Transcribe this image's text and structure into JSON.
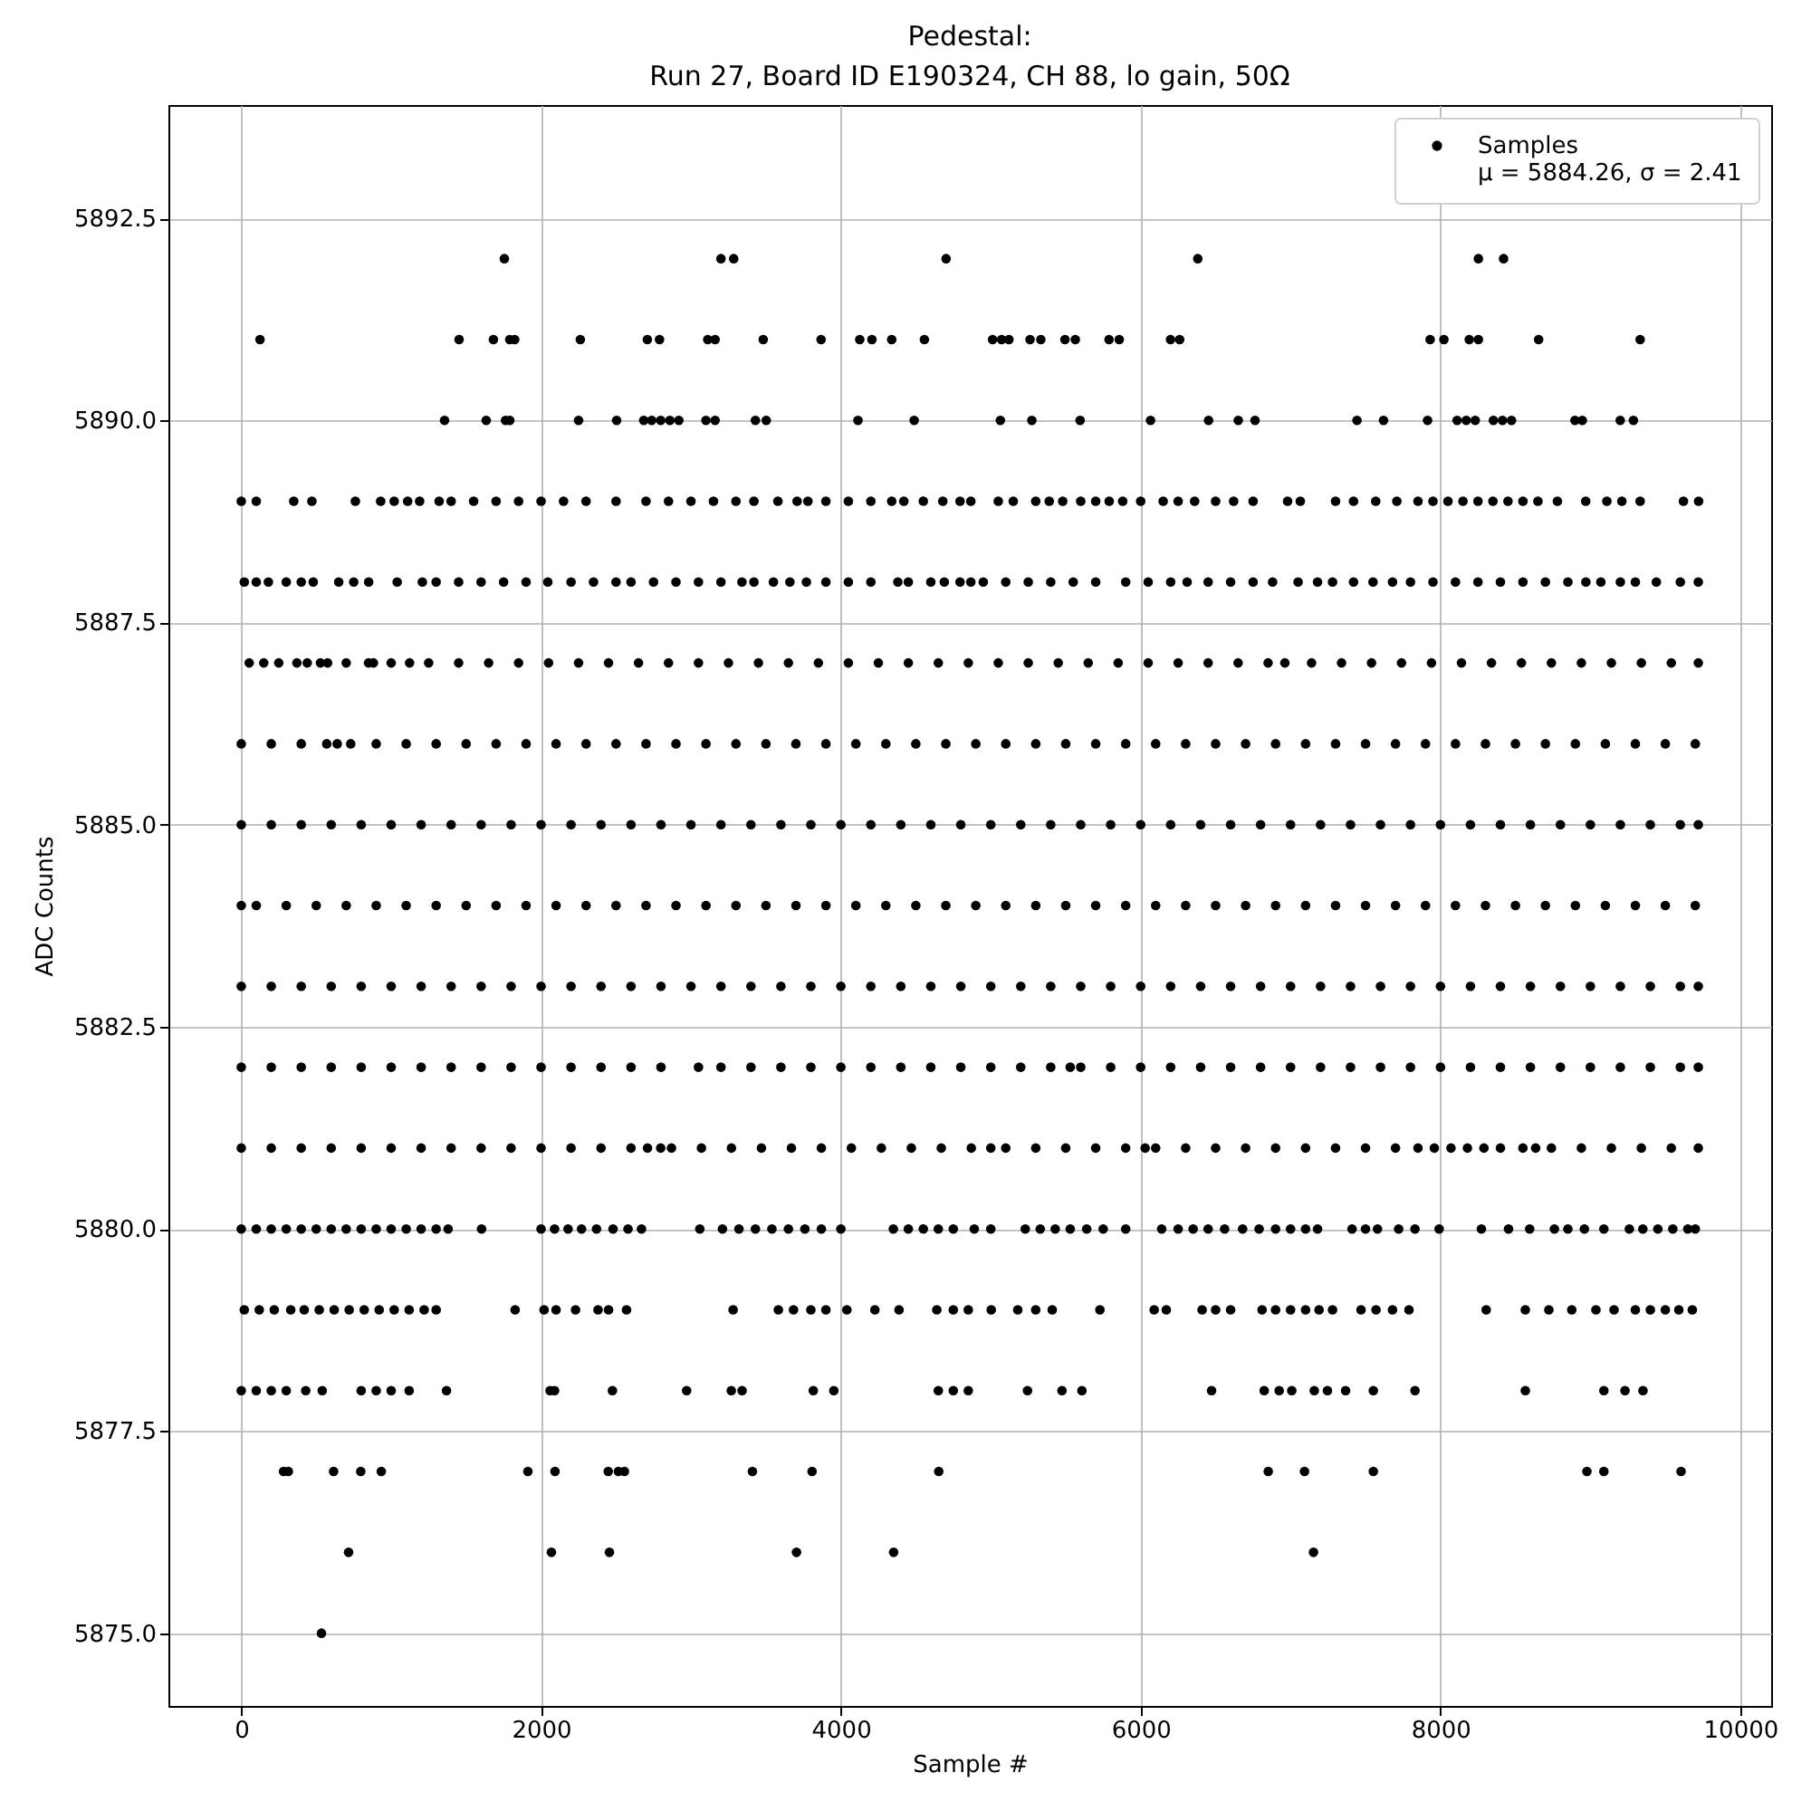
{
  "chart_data": {
    "type": "scatter",
    "title": "Pedestal:\nRun 27, Board ID E190324, CH 88, lo gain, 50Ω",
    "xlabel": "Sample #",
    "ylabel": "ADC Counts",
    "xlim": [
      -486,
      10206
    ],
    "ylim": [
      5874.1,
      5893.9
    ],
    "xticks": [
      0,
      2000,
      4000,
      6000,
      8000,
      10000
    ],
    "yticks": [
      {
        "value": 5875,
        "label": "5875.0"
      },
      5877.5,
      {
        "value": 5880,
        "label": "5880.0"
      },
      5882.5,
      {
        "value": 5885,
        "label": "5885.0"
      },
      5887.5,
      {
        "value": 5890,
        "label": "5890.0"
      },
      5892.5
    ],
    "grid": true,
    "legend": "top right",
    "marker": "circle",
    "x": [
      535,
      716,
      2069,
      2456,
      3704,
      4352,
      7153,
      282,
      314,
      616,
      797,
      934,
      1912,
      2093,
      2448,
      2516,
      2556,
      3410,
      3808,
      4653,
      6851,
      7093,
      7552,
      8977,
      9090,
      9605,
      0,
      100,
      200,
      300,
      430,
      540,
      800,
      900,
      1000,
      1120,
      1369,
      2060,
      2090,
      2476,
      2971,
      3269,
      3341,
      3816,
      3953,
      4650,
      4750,
      4850,
      5245,
      5475,
      5608,
      6473,
      6824,
      6924,
      7008,
      7158,
      7246,
      7367,
      7552,
      7830,
      8566,
      9090,
      9231,
      9351,
      20,
      120,
      220,
      330,
      420,
      520,
      620,
      720,
      820,
      920,
      1020,
      1120,
      1220,
      1300,
      1827,
      2020,
      2100,
      2230,
      2380,
      2450,
      2570,
      3281,
      3583,
      3684,
      3800,
      3900,
      4040,
      4227,
      4388,
      4640,
      4750,
      4850,
      5003,
      5180,
      5300,
      5410,
      5728,
      6090,
      6171,
      6410,
      6500,
      6600,
      6810,
      6900,
      7000,
      7100,
      7190,
      7280,
      7470,
      7570,
      7680,
      7790,
      8305,
      8566,
      8723,
      8876,
      9037,
      9158,
      9300,
      9400,
      9500,
      9590,
      9680,
      0,
      100,
      200,
      300,
      400,
      500,
      600,
      700,
      800,
      900,
      1000,
      1100,
      1200,
      1300,
      1380,
      1603,
      2000,
      2090,
      2180,
      2270,
      2370,
      2480,
      2580,
      2670,
      3059,
      3210,
      3320,
      3430,
      3540,
      3650,
      3760,
      3870,
      4000,
      4350,
      4450,
      4550,
      4650,
      4750,
      4890,
      5000,
      5230,
      5330,
      5430,
      5530,
      5640,
      5750,
      5900,
      6140,
      6250,
      6350,
      6450,
      6560,
      6680,
      6790,
      6900,
      7000,
      7100,
      7180,
      7410,
      7500,
      7580,
      7721,
      7830,
      7991,
      8273,
      8454,
      8595,
      8760,
      8850,
      8960,
      9090,
      9260,
      9350,
      9450,
      9550,
      9650,
      9700,
      0,
      200,
      400,
      600,
      800,
      1000,
      1200,
      1400,
      1600,
      1800,
      2000,
      2200,
      2400,
      2600,
      2710,
      2798,
      2870,
      3070,
      3270,
      3470,
      3670,
      3870,
      4070,
      4270,
      4470,
      4670,
      4870,
      5000,
      5100,
      5300,
      5500,
      5700,
      5900,
      6030,
      6100,
      6300,
      6500,
      6700,
      6900,
      7100,
      7300,
      7500,
      7700,
      7850,
      7959,
      8070,
      8180,
      8290,
      8400,
      8550,
      8635,
      8740,
      8940,
      9140,
      9340,
      9540,
      9720,
      0,
      200,
      400,
      600,
      800,
      1000,
      1200,
      1400,
      1600,
      1800,
      2000,
      2200,
      2400,
      2600,
      2800,
      3050,
      3200,
      3400,
      3600,
      3800,
      4000,
      4200,
      4400,
      4600,
      4800,
      5000,
      5200,
      5400,
      5530,
      5600,
      5800,
      6000,
      6200,
      6400,
      6600,
      6800,
      7000,
      7200,
      7400,
      7600,
      7800,
      8000,
      8200,
      8400,
      8600,
      8800,
      9000,
      9200,
      9400,
      9600,
      9720,
      0,
      200,
      400,
      600,
      800,
      1000,
      1200,
      1400,
      1600,
      1800,
      2000,
      2200,
      2400,
      2600,
      2800,
      3000,
      3200,
      3400,
      3600,
      3800,
      4000,
      4200,
      4400,
      4600,
      4800,
      5000,
      5200,
      5400,
      5600,
      5800,
      6000,
      6200,
      6400,
      6600,
      6800,
      7000,
      7200,
      7400,
      7600,
      7800,
      8000,
      8200,
      8400,
      8600,
      8800,
      9000,
      9200,
      9400,
      9600,
      9720,
      0,
      100,
      300,
      500,
      700,
      900,
      1100,
      1300,
      1500,
      1700,
      1900,
      2100,
      2300,
      2500,
      2700,
      2900,
      3100,
      3300,
      3500,
      3700,
      3900,
      4100,
      4300,
      4500,
      4700,
      4900,
      5100,
      5300,
      5500,
      5700,
      5900,
      6100,
      6300,
      6500,
      6700,
      6900,
      7100,
      7300,
      7500,
      7700,
      7900,
      8100,
      8300,
      8500,
      8700,
      8900,
      9100,
      9300,
      9500,
      9700,
      0,
      200,
      400,
      600,
      800,
      1000,
      1200,
      1400,
      1600,
      1800,
      2000,
      2200,
      2400,
      2600,
      2800,
      3000,
      3200,
      3400,
      3600,
      3800,
      4000,
      4200,
      4400,
      4600,
      4800,
      5000,
      5200,
      5400,
      5600,
      5800,
      6000,
      6200,
      6400,
      6600,
      6800,
      7000,
      7200,
      7400,
      7600,
      7800,
      8000,
      8200,
      8400,
      8600,
      8800,
      9000,
      9200,
      9400,
      9600,
      9720,
      0,
      200,
      400,
      570,
      640,
      730,
      900,
      1100,
      1300,
      1500,
      1700,
      1900,
      2100,
      2300,
      2500,
      2700,
      2900,
      3100,
      3300,
      3500,
      3700,
      3900,
      4100,
      4300,
      4500,
      4700,
      4900,
      5100,
      5300,
      5500,
      5700,
      5900,
      6100,
      6300,
      6500,
      6700,
      6900,
      7100,
      7300,
      7500,
      7700,
      7900,
      8100,
      8300,
      8500,
      8700,
      8900,
      9100,
      9300,
      9500,
      9700,
      53,
      150,
      250,
      371,
      440,
      528,
      576,
      700,
      849,
      882,
      1000,
      1123,
      1250,
      1450,
      1650,
      1850,
      2050,
      2250,
      2450,
      2650,
      2850,
      3050,
      3250,
      3450,
      3650,
      3850,
      4050,
      4250,
      4450,
      4650,
      4850,
      5050,
      5250,
      5450,
      5650,
      5850,
      6050,
      6250,
      6450,
      6650,
      6850,
      6962,
      7140,
      7340,
      7540,
      7740,
      7940,
      8140,
      8340,
      8540,
      8740,
      8940,
      9140,
      9340,
      9540,
      9720,
      20,
      100,
      181,
      300,
      400,
      480,
      650,
      750,
      850,
      1040,
      1208,
      1300,
      1450,
      1600,
      1750,
      1900,
      2045,
      2200,
      2350,
      2500,
      2600,
      2750,
      2900,
      3050,
      3200,
      3340,
      3420,
      3550,
      3660,
      3770,
      3900,
      4050,
      4200,
      4380,
      4450,
      4600,
      4690,
      4795,
      4867,
      4950,
      5100,
      5250,
      5400,
      5550,
      5700,
      5900,
      6050,
      6200,
      6310,
      6450,
      6600,
      6750,
      6880,
      7050,
      7180,
      7280,
      7420,
      7550,
      7680,
      7800,
      7950,
      8100,
      8250,
      8400,
      8550,
      8700,
      8850,
      8970,
      9070,
      9200,
      9300,
      9440,
      9600,
      9720,
      0,
      100,
      350,
      471,
      761,
      930,
      1020,
      1110,
      1190,
      1320,
      1400,
      1550,
      1700,
      1850,
      2000,
      2150,
      2300,
      2500,
      2700,
      2850,
      3000,
      3150,
      3300,
      3420,
      3580,
      3708,
      3780,
      3900,
      4050,
      4200,
      4339,
      4420,
      4550,
      4680,
      4795,
      4867,
      5050,
      5150,
      5300,
      5390,
      5480,
      5600,
      5700,
      5790,
      5880,
      6000,
      6150,
      6250,
      6360,
      6500,
      6620,
      6750,
      6980,
      7065,
      7300,
      7420,
      7568,
      7709,
      7850,
      7950,
      8050,
      8150,
      8250,
      8350,
      8450,
      8550,
      8650,
      8780,
      8969,
      9110,
      9210,
      9332,
      9621,
      9722,
      1356,
      1634,
      1763,
      1791,
      2250,
      2504,
      2685,
      2738,
      2798,
      2859,
      2919,
      3100,
      3161,
      3430,
      3502,
      4114,
      4489,
      5064,
      5274,
      5596,
      6066,
      6453,
      6651,
      6763,
      7443,
      7620,
      7914,
      8111,
      8172,
      8232,
      8353,
      8414,
      8474,
      8897,
      8946,
      9199,
      9287,
      125,
      1453,
      1682,
      1791,
      1824,
      2262,
      2709,
      2790,
      3112,
      3161,
      3482,
      3868,
      4126,
      4207,
      4339,
      4557,
      5012,
      5072,
      5121,
      5262,
      5334,
      5495,
      5564,
      5789,
      5857,
      6199,
      6260,
      7931,
      8023,
      8192,
      8253,
      8655,
      9332,
      1755,
      3200,
      3285,
      4702,
      6381,
      8253,
      8421
    ],
    "series": [
      {
        "name": "Samples\nμ = 5884.26, σ = 2.41",
        "color": "#000000",
        "values": [
          5875,
          5876,
          5876,
          5876,
          5876,
          5876,
          5876,
          5877,
          5877,
          5877,
          5877,
          5877,
          5877,
          5877,
          5877,
          5877,
          5877,
          5877,
          5877,
          5877,
          5877,
          5877,
          5877,
          5877,
          5877,
          5877,
          5878,
          5878,
          5878,
          5878,
          5878,
          5878,
          5878,
          5878,
          5878,
          5878,
          5878,
          5878,
          5878,
          5878,
          5878,
          5878,
          5878,
          5878,
          5878,
          5878,
          5878,
          5878,
          5878,
          5878,
          5878,
          5878,
          5878,
          5878,
          5878,
          5878,
          5878,
          5878,
          5878,
          5878,
          5878,
          5878,
          5878,
          5878,
          5879,
          5879,
          5879,
          5879,
          5879,
          5879,
          5879,
          5879,
          5879,
          5879,
          5879,
          5879,
          5879,
          5879,
          5879,
          5879,
          5879,
          5879,
          5879,
          5879,
          5879,
          5879,
          5879,
          5879,
          5879,
          5879,
          5879,
          5879,
          5879,
          5879,
          5879,
          5879,
          5879,
          5879,
          5879,
          5879,
          5879,
          5879,
          5879,
          5879,
          5879,
          5879,
          5879,
          5879,
          5879,
          5879,
          5879,
          5879,
          5879,
          5879,
          5879,
          5879,
          5879,
          5879,
          5879,
          5879,
          5879,
          5879,
          5879,
          5879,
          5879,
          5879,
          5879,
          5880,
          5880,
          5880,
          5880,
          5880,
          5880,
          5880,
          5880,
          5880,
          5880,
          5880,
          5880,
          5880,
          5880,
          5880,
          5880,
          5880,
          5880,
          5880,
          5880,
          5880,
          5880,
          5880,
          5880,
          5880,
          5880,
          5880,
          5880,
          5880,
          5880,
          5880,
          5880,
          5880,
          5880,
          5880,
          5880,
          5880,
          5880,
          5880,
          5880,
          5880,
          5880,
          5880,
          5880,
          5880,
          5880,
          5880,
          5880,
          5880,
          5880,
          5880,
          5880,
          5880,
          5880,
          5880,
          5880,
          5880,
          5880,
          5880,
          5880,
          5880,
          5880,
          5880,
          5880,
          5880,
          5880,
          5880,
          5880,
          5880,
          5880,
          5880,
          5880,
          5880,
          5880,
          5880,
          5880,
          5880,
          5881,
          5881,
          5881,
          5881,
          5881,
          5881,
          5881,
          5881,
          5881,
          5881,
          5881,
          5881,
          5881,
          5881,
          5881,
          5881,
          5881,
          5881,
          5881,
          5881,
          5881,
          5881,
          5881,
          5881,
          5881,
          5881,
          5881,
          5881,
          5881,
          5881,
          5881,
          5881,
          5881,
          5881,
          5881,
          5881,
          5881,
          5881,
          5881,
          5881,
          5881,
          5881,
          5881,
          5881,
          5881,
          5881,
          5881,
          5881,
          5881,
          5881,
          5881,
          5881,
          5881,
          5881,
          5881,
          5881,
          5881,
          5882,
          5882,
          5882,
          5882,
          5882,
          5882,
          5882,
          5882,
          5882,
          5882,
          5882,
          5882,
          5882,
          5882,
          5882,
          5882,
          5882,
          5882,
          5882,
          5882,
          5882,
          5882,
          5882,
          5882,
          5882,
          5882,
          5882,
          5882,
          5882,
          5882,
          5882,
          5882,
          5882,
          5882,
          5882,
          5882,
          5882,
          5882,
          5882,
          5882,
          5882,
          5882,
          5882,
          5882,
          5882,
          5882,
          5882,
          5882,
          5882,
          5882,
          5882,
          5883,
          5883,
          5883,
          5883,
          5883,
          5883,
          5883,
          5883,
          5883,
          5883,
          5883,
          5883,
          5883,
          5883,
          5883,
          5883,
          5883,
          5883,
          5883,
          5883,
          5883,
          5883,
          5883,
          5883,
          5883,
          5883,
          5883,
          5883,
          5883,
          5883,
          5883,
          5883,
          5883,
          5883,
          5883,
          5883,
          5883,
          5883,
          5883,
          5883,
          5883,
          5883,
          5883,
          5883,
          5883,
          5883,
          5883,
          5883,
          5883,
          5883,
          5884,
          5884,
          5884,
          5884,
          5884,
          5884,
          5884,
          5884,
          5884,
          5884,
          5884,
          5884,
          5884,
          5884,
          5884,
          5884,
          5884,
          5884,
          5884,
          5884,
          5884,
          5884,
          5884,
          5884,
          5884,
          5884,
          5884,
          5884,
          5884,
          5884,
          5884,
          5884,
          5884,
          5884,
          5884,
          5884,
          5884,
          5884,
          5884,
          5884,
          5884,
          5884,
          5884,
          5884,
          5884,
          5884,
          5884,
          5884,
          5884,
          5884,
          5885,
          5885,
          5885,
          5885,
          5885,
          5885,
          5885,
          5885,
          5885,
          5885,
          5885,
          5885,
          5885,
          5885,
          5885,
          5885,
          5885,
          5885,
          5885,
          5885,
          5885,
          5885,
          5885,
          5885,
          5885,
          5885,
          5885,
          5885,
          5885,
          5885,
          5885,
          5885,
          5885,
          5885,
          5885,
          5885,
          5885,
          5885,
          5885,
          5885,
          5885,
          5885,
          5885,
          5885,
          5885,
          5885,
          5885,
          5885,
          5885,
          5885,
          5886,
          5886,
          5886,
          5886,
          5886,
          5886,
          5886,
          5886,
          5886,
          5886,
          5886,
          5886,
          5886,
          5886,
          5886,
          5886,
          5886,
          5886,
          5886,
          5886,
          5886,
          5886,
          5886,
          5886,
          5886,
          5886,
          5886,
          5886,
          5886,
          5886,
          5886,
          5886,
          5886,
          5886,
          5886,
          5886,
          5886,
          5886,
          5886,
          5886,
          5886,
          5886,
          5886,
          5886,
          5886,
          5886,
          5886,
          5886,
          5886,
          5886,
          5886,
          5887,
          5887,
          5887,
          5887,
          5887,
          5887,
          5887,
          5887,
          5887,
          5887,
          5887,
          5887,
          5887,
          5887,
          5887,
          5887,
          5887,
          5887,
          5887,
          5887,
          5887,
          5887,
          5887,
          5887,
          5887,
          5887,
          5887,
          5887,
          5887,
          5887,
          5887,
          5887,
          5887,
          5887,
          5887,
          5887,
          5887,
          5887,
          5887,
          5887,
          5887,
          5887,
          5887,
          5887,
          5887,
          5887,
          5887,
          5887,
          5887,
          5887,
          5887,
          5887,
          5887,
          5887,
          5887,
          5887,
          5888,
          5888,
          5888,
          5888,
          5888,
          5888,
          5888,
          5888,
          5888,
          5888,
          5888,
          5888,
          5888,
          5888,
          5888,
          5888,
          5888,
          5888,
          5888,
          5888,
          5888,
          5888,
          5888,
          5888,
          5888,
          5888,
          5888,
          5888,
          5888,
          5888,
          5888,
          5888,
          5888,
          5888,
          5888,
          5888,
          5888,
          5888,
          5888,
          5888,
          5888,
          5888,
          5888,
          5888,
          5888,
          5888,
          5888,
          5888,
          5888,
          5888,
          5888,
          5888,
          5888,
          5888,
          5888,
          5888,
          5888,
          5888,
          5888,
          5888,
          5888,
          5888,
          5888,
          5888,
          5888,
          5888,
          5888,
          5888,
          5888,
          5888,
          5888,
          5888,
          5888,
          5888,
          5889,
          5889,
          5889,
          5889,
          5889,
          5889,
          5889,
          5889,
          5889,
          5889,
          5889,
          5889,
          5889,
          5889,
          5889,
          5889,
          5889,
          5889,
          5889,
          5889,
          5889,
          5889,
          5889,
          5889,
          5889,
          5889,
          5889,
          5889,
          5889,
          5889,
          5889,
          5889,
          5889,
          5889,
          5889,
          5889,
          5889,
          5889,
          5889,
          5889,
          5889,
          5889,
          5889,
          5889,
          5889,
          5889,
          5889,
          5889,
          5889,
          5889,
          5889,
          5889,
          5889,
          5889,
          5889,
          5889,
          5889,
          5889,
          5889,
          5889,
          5889,
          5889,
          5889,
          5889,
          5889,
          5889,
          5889,
          5889,
          5889,
          5889,
          5889,
          5889,
          5889,
          5889,
          5890,
          5890,
          5890,
          5890,
          5890,
          5890,
          5890,
          5890,
          5890,
          5890,
          5890,
          5890,
          5890,
          5890,
          5890,
          5890,
          5890,
          5890,
          5890,
          5890,
          5890,
          5890,
          5890,
          5890,
          5890,
          5890,
          5890,
          5890,
          5890,
          5890,
          5890,
          5890,
          5890,
          5890,
          5890,
          5890,
          5890,
          5891,
          5891,
          5891,
          5891,
          5891,
          5891,
          5891,
          5891,
          5891,
          5891,
          5891,
          5891,
          5891,
          5891,
          5891,
          5891,
          5891,
          5891,
          5891,
          5891,
          5891,
          5891,
          5891,
          5891,
          5891,
          5891,
          5891,
          5891,
          5891,
          5891,
          5891,
          5891,
          5891,
          5892,
          5892,
          5892,
          5892,
          5892,
          5892,
          5892
        ]
      }
    ]
  }
}
